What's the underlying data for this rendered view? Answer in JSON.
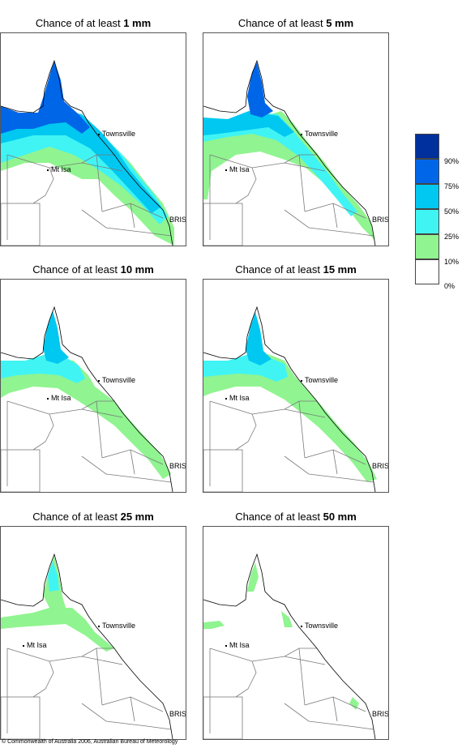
{
  "panels": [
    {
      "prefix": "Chance of at least ",
      "amount": "1 mm",
      "level": 0
    },
    {
      "prefix": "Chance of at least ",
      "amount": "5 mm",
      "level": 1
    },
    {
      "prefix": "Chance of at least ",
      "amount": "10 mm",
      "level": 2
    },
    {
      "prefix": "Chance of at least ",
      "amount": "15 mm",
      "level": 3
    },
    {
      "prefix": "Chance of at least ",
      "amount": "25 mm",
      "level": 4
    },
    {
      "prefix": "Chance of at least ",
      "amount": "50 mm",
      "level": 5
    }
  ],
  "places": {
    "townsville": "Townsville",
    "mt_isa": "Mt Isa",
    "bris": "BRIS"
  },
  "legend": {
    "labels": [
      "90%",
      "75%",
      "50%",
      "25%",
      "10%",
      "0%"
    ],
    "colors": [
      "#00309c",
      "#0066e8",
      "#00c8f0",
      "#40f4f4",
      "#90f490",
      "#ffffff"
    ]
  },
  "footer": "© Commonwealth of Australia 2006, Australian Bureau of Meteorology",
  "colors": {
    "outline": "#7a7a7a",
    "coast": "#000000"
  }
}
